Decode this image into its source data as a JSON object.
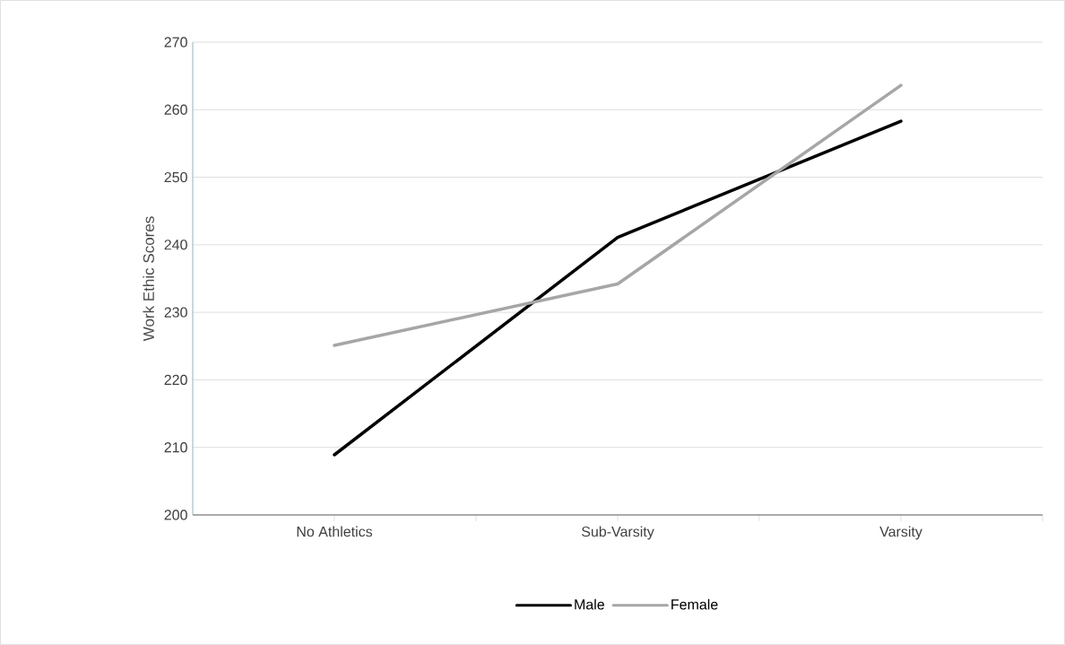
{
  "chart_data": {
    "type": "line",
    "ylabel": "Work Ethic Scores",
    "categories": [
      "No Athletics",
      "Sub-Varsity",
      "Varsity"
    ],
    "series": [
      {
        "name": "Male",
        "color": "#000000",
        "values": [
          208.9,
          241.1,
          258.3
        ]
      },
      {
        "name": "Female",
        "color": "#a6a6a6",
        "values": [
          225.1,
          234.2,
          263.6
        ]
      }
    ],
    "ylim": [
      200,
      270
    ],
    "yticks": [
      200,
      210,
      220,
      230,
      240,
      250,
      260,
      270
    ],
    "grid": "y",
    "legend": "bottom",
    "marker": "none",
    "line_style": "solid"
  }
}
